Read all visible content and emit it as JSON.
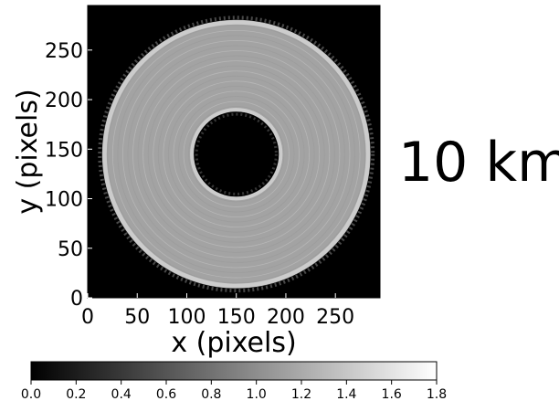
{
  "side_label": "10 km",
  "chart_data": {
    "type": "heatmap",
    "title": "",
    "xlabel": "x (pixels)",
    "ylabel": "y (pixels)",
    "xlim": [
      0,
      295
    ],
    "ylim": [
      0,
      295
    ],
    "x_ticks": [
      0,
      50,
      100,
      150,
      200,
      250
    ],
    "y_ticks": [
      0,
      50,
      100,
      150,
      200,
      250
    ],
    "grid": false,
    "colormap": "gray",
    "colorbar": {
      "range": [
        0.0,
        1.8
      ],
      "ticks": [
        "0.0",
        "0.2",
        "0.4",
        "0.6",
        "0.8",
        "1.0",
        "1.2",
        "1.4",
        "1.6",
        "1.8"
      ],
      "placement": "bottom"
    },
    "ring": {
      "center": [
        150,
        145
      ],
      "inner_radius": 43,
      "outer_radius": 135,
      "ring_value": 1.15,
      "background_value": 0.0,
      "edge_value": 1.5
    }
  }
}
